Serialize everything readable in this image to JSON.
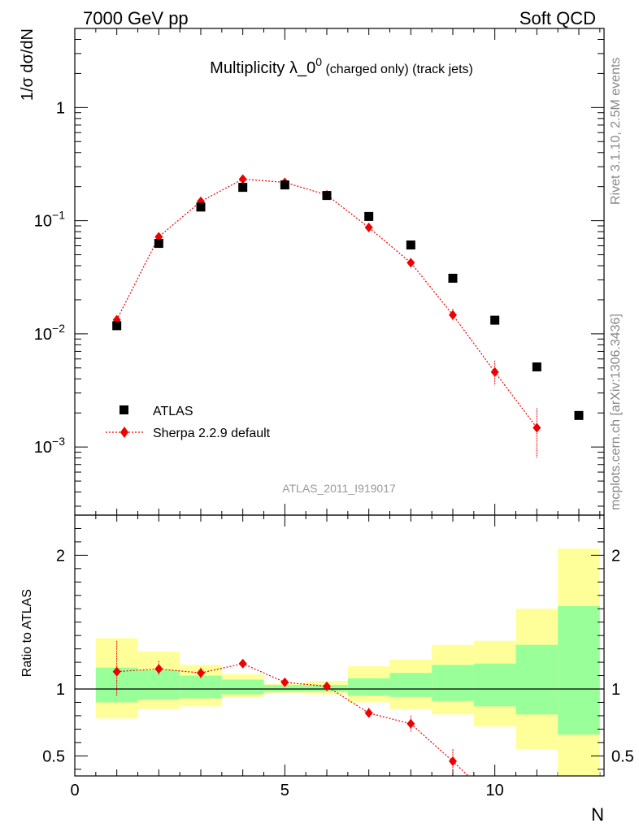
{
  "header": {
    "energy_label": "7000 GeV pp",
    "category_label": "Soft QCD",
    "side_info": "Rivet 3.1.10,  2.5M events",
    "side_source": "mcplots.cern.ch [arXiv:1306.3436]",
    "analysis_id": "ATLAS_2011_I919017"
  },
  "chart_data": [
    {
      "type": "scatter",
      "title": "Multiplicity λ_0",
      "title_superscript": "0",
      "title_suffix": " (charged only) (track jets)",
      "ylabel": "1/σ dσ/dN",
      "xlabel": "N",
      "yscale": "log",
      "xlim": [
        0,
        12.6
      ],
      "ylim": [
        0.00025,
        5
      ],
      "y_ticks": [
        {
          "value": 1,
          "label": "1",
          "sup": ""
        },
        {
          "value": 0.1,
          "label": "10",
          "sup": "−1"
        },
        {
          "value": 0.01,
          "label": "10",
          "sup": "−2"
        },
        {
          "value": 0.001,
          "label": "10",
          "sup": "−3"
        }
      ],
      "legend": [
        "ATLAS",
        "Sherpa 2.2.9 default"
      ],
      "series": [
        {
          "name": "ATLAS",
          "color": "#000000",
          "x": [
            1,
            2,
            3,
            4,
            5,
            6,
            7,
            8,
            9,
            10,
            11,
            12
          ],
          "y": [
            0.0118,
            0.063,
            0.132,
            0.197,
            0.207,
            0.167,
            0.109,
            0.061,
            0.031,
            0.0132,
            0.0051,
            0.0019
          ]
        },
        {
          "name": "Sherpa 2.2.9 default",
          "color": "#ee0000",
          "x": [
            1,
            2,
            3,
            4,
            5,
            6,
            7,
            8,
            9,
            10,
            11
          ],
          "y": [
            0.0133,
            0.072,
            0.148,
            0.233,
            0.218,
            0.169,
            0.087,
            0.0425,
            0.0147,
            0.0046,
            0.00148
          ],
          "err_up": [
            0.0136,
            0.074,
            0.151,
            0.236,
            0.221,
            0.172,
            0.089,
            0.0445,
            0.0166,
            0.0058,
            0.0022
          ],
          "err_down": [
            0.0128,
            0.07,
            0.145,
            0.23,
            0.215,
            0.166,
            0.085,
            0.0405,
            0.0129,
            0.0035,
            0.0008
          ]
        }
      ]
    },
    {
      "type": "scatter",
      "ylabel": "Ratio to ATLAS",
      "xlabel": "N",
      "xlim": [
        0,
        12.6
      ],
      "ylim": [
        0.35,
        2.3
      ],
      "x_ticks": [
        "0",
        "5",
        "10"
      ],
      "y_ticks": [
        "0.5",
        "1",
        "2"
      ],
      "bins": [
        {
          "lo": 0.5,
          "hi": 1.5,
          "inner": [
            0.9,
            1.16
          ],
          "outer": [
            0.78,
            1.38
          ]
        },
        {
          "lo": 1.5,
          "hi": 2.5,
          "inner": [
            0.92,
            1.14
          ],
          "outer": [
            0.85,
            1.28
          ]
        },
        {
          "lo": 2.5,
          "hi": 3.5,
          "inner": [
            0.93,
            1.1
          ],
          "outer": [
            0.87,
            1.18
          ]
        },
        {
          "lo": 3.5,
          "hi": 4.5,
          "inner": [
            0.96,
            1.07
          ],
          "outer": [
            0.94,
            1.11
          ]
        },
        {
          "lo": 4.5,
          "hi": 5.5,
          "inner": [
            0.98,
            1.03
          ],
          "outer": [
            0.97,
            1.04
          ]
        },
        {
          "lo": 5.5,
          "hi": 6.5,
          "inner": [
            0.98,
            1.03
          ],
          "outer": [
            0.96,
            1.06
          ]
        },
        {
          "lo": 6.5,
          "hi": 7.5,
          "inner": [
            0.95,
            1.08
          ],
          "outer": [
            0.9,
            1.17
          ]
        },
        {
          "lo": 7.5,
          "hi": 8.5,
          "inner": [
            0.94,
            1.12
          ],
          "outer": [
            0.85,
            1.22
          ]
        },
        {
          "lo": 8.5,
          "hi": 9.5,
          "inner": [
            0.91,
            1.18
          ],
          "outer": [
            0.81,
            1.33
          ]
        },
        {
          "lo": 9.5,
          "hi": 10.5,
          "inner": [
            0.87,
            1.19
          ],
          "outer": [
            0.72,
            1.36
          ]
        },
        {
          "lo": 10.5,
          "hi": 11.5,
          "inner": [
            0.81,
            1.33
          ],
          "outer": [
            0.55,
            1.6
          ]
        },
        {
          "lo": 11.5,
          "hi": 12.5,
          "inner": [
            0.66,
            1.62
          ],
          "outer": [
            0.35,
            2.05
          ]
        }
      ],
      "series": [
        {
          "name": "Sherpa 2.2.9 default",
          "color": "#ee0000",
          "x": [
            1,
            2,
            3,
            4,
            5,
            6,
            7,
            8,
            9,
            9.4
          ],
          "y": [
            1.13,
            1.15,
            1.12,
            1.19,
            1.05,
            1.02,
            0.82,
            0.74,
            0.46,
            0.34
          ],
          "err_up": [
            1.36,
            1.21,
            1.16,
            1.22,
            1.08,
            1.05,
            0.86,
            0.8,
            0.55,
            null
          ],
          "err_down": [
            0.95,
            1.1,
            1.08,
            1.16,
            1.02,
            1.0,
            0.79,
            0.68,
            0.38,
            null
          ]
        }
      ]
    }
  ]
}
